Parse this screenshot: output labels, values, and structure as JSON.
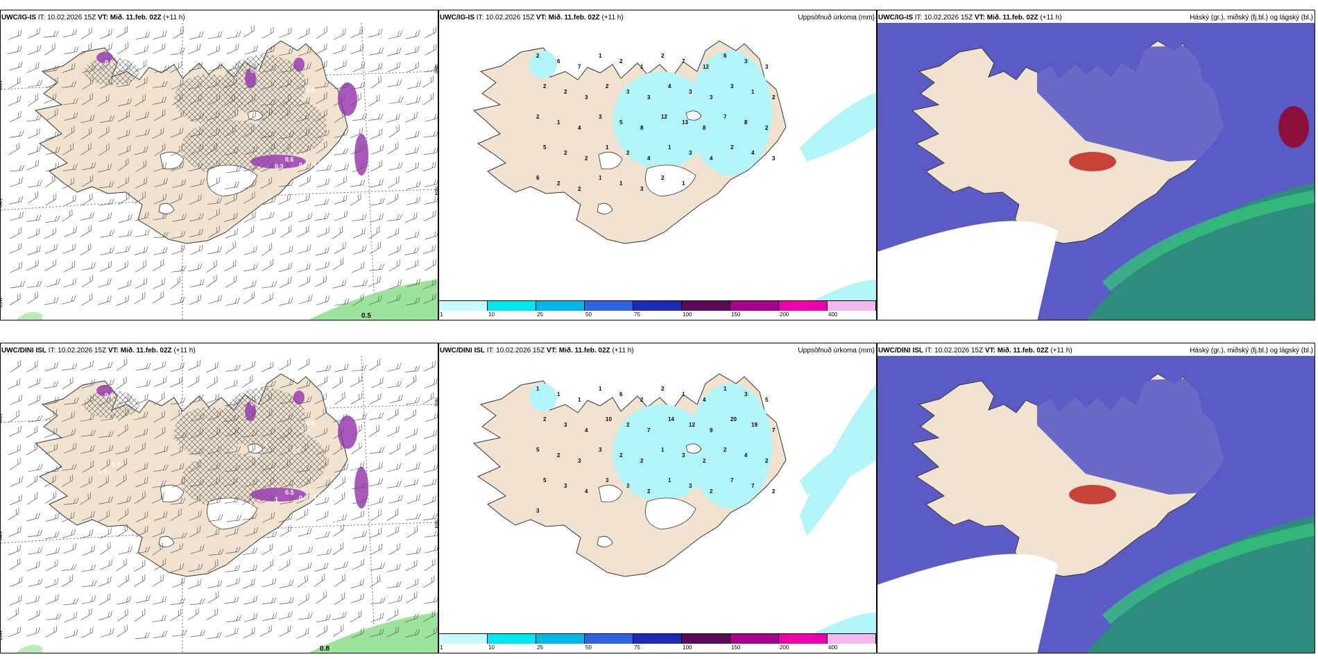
{
  "rows": [
    {
      "model": "UWC/IG-IS",
      "init_label": "IT:",
      "init_time": "10.02.2026 15Z",
      "valid_label": "VT:",
      "valid_time": "Mið. 11.feb. 02Z",
      "lead": "(+11 h)",
      "grid_labels": {
        "lat_n": "66N",
        "lat_s": "64N",
        "lon_w": "25W",
        "lon_m": "20W",
        "lon_e": "",
        "lat_e_n": "N66",
        "lat_e_s": "N64"
      },
      "corner_value": "0.5",
      "panel1_values": [
        "0.1",
        "0.3",
        "0.3",
        "0.6",
        "0.9",
        "0.7",
        "0.5",
        "0.6",
        "0.5",
        "0.4",
        "0.8",
        "0.1"
      ],
      "panel2_values": [
        "2",
        "6",
        "7",
        "1",
        "2",
        "1",
        "2",
        "7",
        "12",
        "6",
        "3",
        "3",
        "2",
        "2",
        "3",
        "2",
        "3",
        "3",
        "4",
        "3",
        "3",
        "3",
        "1",
        "2",
        "2",
        "1",
        "4",
        "3",
        "5",
        "8",
        "12",
        "13",
        "8",
        "7",
        "8",
        "2",
        "5",
        "2",
        "2",
        "1",
        "2",
        "4",
        "1",
        "3",
        "4",
        "2",
        "4",
        "3",
        "6",
        "2",
        "2",
        "1",
        "1",
        "3",
        "2",
        "1"
      ]
    },
    {
      "model": "UWC/DINI ISL",
      "init_label": "IT:",
      "init_time": "10.02.2026 15Z",
      "valid_label": "VT:",
      "valid_time": "Mið. 11.feb. 02Z",
      "lead": "(+11 h)",
      "grid_labels": {
        "lat_n": "66N",
        "lat_s": "64N",
        "lon_w": "25W",
        "lon_m": "20W",
        "lon_e": "15W",
        "lat_e_n": "N66",
        "lat_e_s": "N64"
      },
      "corner_value": "0.8",
      "panel1_values": [
        "0.6",
        "0.1",
        "1",
        "0.5",
        "0.5",
        "0.6",
        "0.7",
        "0.7",
        "0.4",
        "0.3",
        "0.6",
        "0.3",
        "0.7",
        "1",
        "0.7",
        "0.6",
        "0.5",
        "0.6",
        "1.9"
      ],
      "panel2_values": [
        "1",
        "1",
        "1",
        "1",
        "6",
        "2",
        "2",
        "1",
        "4",
        "1",
        "3",
        "5",
        "2",
        "3",
        "4",
        "10",
        "2",
        "7",
        "14",
        "12",
        "9",
        "20",
        "19",
        "7",
        "5",
        "2",
        "3",
        "3",
        "2",
        "2",
        "1",
        "3",
        "2",
        "2",
        "4",
        "2",
        "5",
        "3",
        "4",
        "3",
        "3",
        "2",
        "1",
        "3",
        "2",
        "7",
        "7",
        "2",
        "3"
      ]
    }
  ],
  "precip_title": "Uppsöfnuð úrkoma (mm)",
  "cloud_title": "Háský (gr.), miðský (fj.bl.) og lágský (bl.)",
  "colorbar": {
    "ticks": [
      "1",
      "10",
      "25",
      "50",
      "75",
      "100",
      "150",
      "200",
      "400"
    ],
    "colors": [
      "#c8fbff",
      "#00e5ef",
      "#00b7e8",
      "#2f63e2",
      "#1d2ab8",
      "#5a0a57",
      "#a8008e",
      "#ec00ad",
      "#f4b8f0"
    ]
  },
  "colors": {
    "land": "#f2e3d0",
    "ice": "#ffffff",
    "sea": "#ffffff",
    "precip_light": "#b3f6f9",
    "snow": "#9a3cb2",
    "cloud_high": "#5b5bc6",
    "cloud_mid": "#2e8c7d",
    "cloud_low": "#34c27a"
  }
}
